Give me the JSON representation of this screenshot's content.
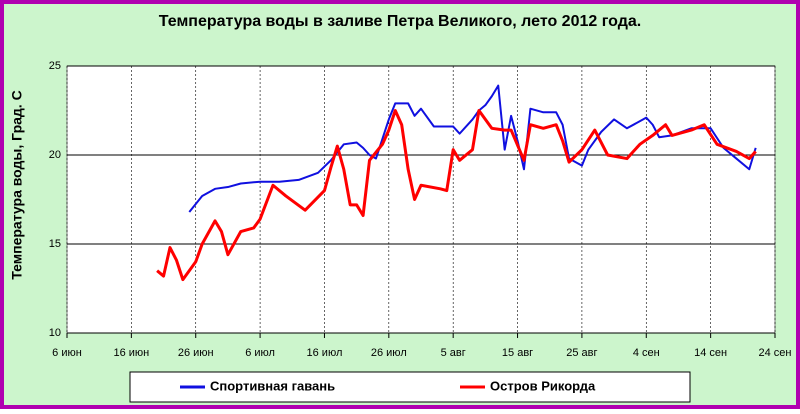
{
  "chart_data": {
    "type": "line",
    "title": "Температура воды в заливе Петра Великого,  лето 2012 года.",
    "y_label": "Температура воды, Град. С",
    "xlim": [
      "06-06",
      "09-24"
    ],
    "xticks": [
      {
        "value": "06-06",
        "label": "6 июн"
      },
      {
        "value": "06-16",
        "label": "16 июн"
      },
      {
        "value": "06-26",
        "label": "26 июн"
      },
      {
        "value": "07-06",
        "label": "6 июл"
      },
      {
        "value": "07-16",
        "label": "16 июл"
      },
      {
        "value": "07-26",
        "label": "26 июл"
      },
      {
        "value": "08-05",
        "label": "5 авг"
      },
      {
        "value": "08-15",
        "label": "15 авг"
      },
      {
        "value": "08-25",
        "label": "25 авг"
      },
      {
        "value": "09-04",
        "label": "4 сен"
      },
      {
        "value": "09-14",
        "label": "14 сен"
      },
      {
        "value": "09-24",
        "label": "24 сен"
      }
    ],
    "ylim": [
      10,
      25
    ],
    "yticks": [
      10,
      15,
      20,
      25
    ],
    "grid": true,
    "legend": "bottom",
    "series": [
      {
        "name": "Спортивная гавань",
        "color": "#1010e0",
        "x": [
          "06-25",
          "06-27",
          "06-29",
          "07-01",
          "07-03",
          "07-06",
          "07-09",
          "07-12",
          "07-15",
          "07-17",
          "07-19",
          "07-21",
          "07-22",
          "07-23",
          "07-24",
          "07-26",
          "07-27",
          "07-29",
          "07-30",
          "07-31",
          "08-02",
          "08-05",
          "08-06",
          "08-08",
          "08-09",
          "08-10",
          "08-11",
          "08-12",
          "08-13",
          "08-14",
          "08-15",
          "08-16",
          "08-17",
          "08-19",
          "08-21",
          "08-22",
          "08-23",
          "08-25",
          "08-26",
          "08-28",
          "08-30",
          "09-01",
          "09-04",
          "09-05",
          "09-06",
          "09-08",
          "09-11",
          "09-14",
          "09-16",
          "09-18",
          "09-20",
          "09-21"
        ],
        "values": [
          16.8,
          17.7,
          18.1,
          18.2,
          18.4,
          18.5,
          18.5,
          18.6,
          19.0,
          19.7,
          20.6,
          20.7,
          20.4,
          20.0,
          19.8,
          22.0,
          22.9,
          22.9,
          22.2,
          22.6,
          21.6,
          21.6,
          21.2,
          22.0,
          22.5,
          22.8,
          23.3,
          23.9,
          20.3,
          22.2,
          20.8,
          19.2,
          22.6,
          22.4,
          22.4,
          21.7,
          19.8,
          19.4,
          20.3,
          21.3,
          22.0,
          21.5,
          22.1,
          21.7,
          21.0,
          21.1,
          21.5,
          21.5,
          20.4,
          19.8,
          19.2,
          20.4
        ]
      },
      {
        "name": "Остров Рикорда",
        "color": "#ff0000",
        "x": [
          "06-20",
          "06-21",
          "06-22",
          "06-23",
          "06-24",
          "06-26",
          "06-27",
          "06-29",
          "06-30",
          "07-01",
          "07-03",
          "07-05",
          "07-06",
          "07-08",
          "07-10",
          "07-13",
          "07-16",
          "07-17",
          "07-18",
          "07-19",
          "07-20",
          "07-21",
          "07-22",
          "07-23",
          "07-25",
          "07-26",
          "07-27",
          "07-28",
          "07-29",
          "07-30",
          "07-31",
          "08-03",
          "08-04",
          "08-05",
          "08-06",
          "08-08",
          "08-09",
          "08-11",
          "08-13",
          "08-14",
          "08-16",
          "08-17",
          "08-19",
          "08-21",
          "08-22",
          "08-23",
          "08-25",
          "08-27",
          "08-29",
          "09-01",
          "09-03",
          "09-05",
          "09-07",
          "09-08",
          "09-11",
          "09-13",
          "09-15",
          "09-18",
          "09-20",
          "09-21"
        ],
        "values": [
          13.5,
          13.2,
          14.8,
          14.1,
          13.0,
          14.0,
          15.0,
          16.3,
          15.7,
          14.4,
          15.7,
          15.9,
          16.4,
          18.3,
          17.7,
          16.9,
          18.0,
          19.3,
          20.5,
          19.2,
          17.2,
          17.2,
          16.6,
          19.7,
          20.6,
          21.4,
          22.5,
          21.7,
          19.2,
          17.5,
          18.3,
          18.1,
          18.0,
          20.3,
          19.7,
          20.3,
          22.5,
          21.5,
          21.4,
          21.4,
          19.7,
          21.7,
          21.5,
          21.7,
          20.8,
          19.6,
          20.3,
          21.4,
          20.0,
          19.8,
          20.6,
          21.1,
          21.7,
          21.1,
          21.4,
          21.7,
          20.6,
          20.2,
          19.8,
          20.2
        ]
      }
    ]
  }
}
